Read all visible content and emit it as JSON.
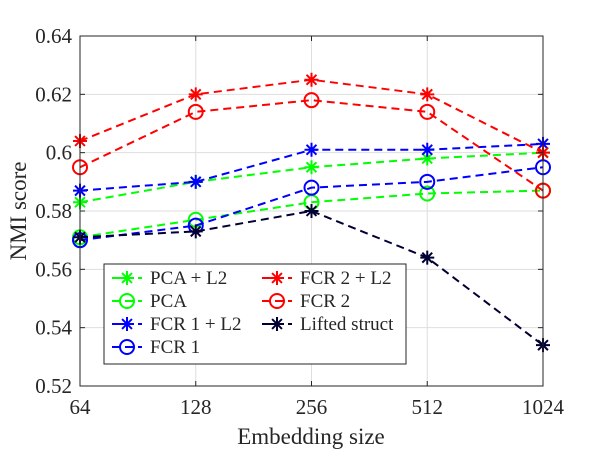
{
  "chart_data": {
    "type": "line",
    "title": "",
    "xlabel": "Embedding size",
    "ylabel": "NMI score",
    "x_scale": "log2",
    "x": [
      64,
      128,
      256,
      512,
      1024
    ],
    "xticks": [
      "64",
      "128",
      "256",
      "512",
      "1024"
    ],
    "ylim": [
      0.52,
      0.64
    ],
    "yticks": [
      "0.52",
      "0.54",
      "0.56",
      "0.58",
      "0.6",
      "0.62",
      "0.64"
    ],
    "grid": true,
    "legend_position": "lower-left",
    "series": [
      {
        "name": "PCA + L2",
        "color": "#00ff00",
        "marker": "asterisk",
        "values": [
          0.583,
          0.59,
          0.595,
          0.598,
          0.6
        ]
      },
      {
        "name": "PCA",
        "color": "#00ff00",
        "marker": "circle",
        "values": [
          0.571,
          0.577,
          0.583,
          0.586,
          0.587
        ]
      },
      {
        "name": "FCR 1 + L2",
        "color": "#0000ff",
        "marker": "asterisk",
        "values": [
          0.587,
          0.59,
          0.601,
          0.601,
          0.603
        ]
      },
      {
        "name": "FCR 1",
        "color": "#0000ff",
        "marker": "circle",
        "values": [
          0.57,
          0.575,
          0.588,
          0.59,
          0.595
        ]
      },
      {
        "name": "FCR 2 + L2",
        "color": "#ff0000",
        "marker": "asterisk",
        "values": [
          0.604,
          0.62,
          0.625,
          0.62,
          0.6
        ]
      },
      {
        "name": "FCR 2",
        "color": "#ff0000",
        "marker": "circle",
        "values": [
          0.595,
          0.614,
          0.618,
          0.614,
          0.587
        ]
      },
      {
        "name": "Lifted struct",
        "color": "#000033",
        "marker": "asterisk",
        "values": [
          0.571,
          0.573,
          0.58,
          0.564,
          0.534
        ]
      }
    ]
  }
}
